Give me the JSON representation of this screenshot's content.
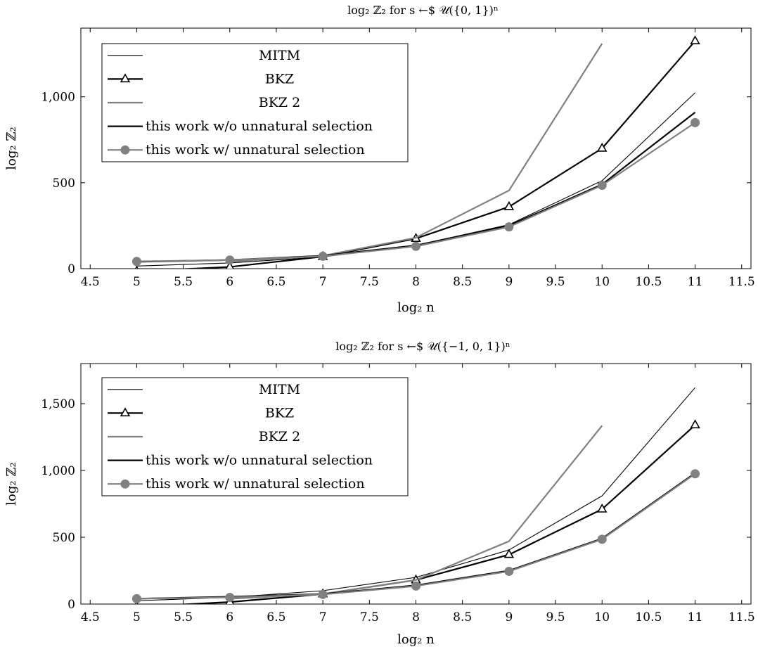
{
  "chart_data": [
    {
      "type": "line",
      "title": "log₂ ℤ₂ for s ←$ 𝒰({0, 1})ⁿ",
      "xlabel": "log₂ n",
      "ylabel": "log₂ ℤ₂",
      "xlim": [
        4.4,
        11.6
      ],
      "ylim": [
        0,
        1400
      ],
      "x_ticks": [
        4.5,
        5,
        5.5,
        6,
        6.5,
        7,
        7.5,
        8,
        8.5,
        9,
        9.5,
        10,
        10.5,
        11,
        11.5
      ],
      "x_tick_labels": [
        "4.5",
        "5",
        "5.5",
        "6",
        "6.5",
        "7",
        "7.5",
        "8",
        "8.5",
        "9",
        "9.5",
        "10",
        "10.5",
        "11",
        "11.5"
      ],
      "y_ticks": [
        0,
        500,
        1000
      ],
      "y_tick_labels": [
        "0",
        "500",
        "1,000"
      ],
      "legend_position": "top-left",
      "series": [
        {
          "name": "MITM",
          "color": "#000000",
          "width": 1,
          "marker": "none",
          "x": [
            5,
            6,
            7,
            8,
            9,
            10,
            11
          ],
          "values": [
            15,
            33,
            68,
            136,
            256,
            512,
            1024
          ]
        },
        {
          "name": "BKZ",
          "color": "#000000",
          "width": 2,
          "marker": "triangle",
          "x": [
            5,
            6,
            7,
            8,
            9,
            10,
            11
          ],
          "values": [
            -15,
            10,
            70,
            175,
            360,
            700,
            1325
          ]
        },
        {
          "name": "BKZ 2",
          "color": "#808080",
          "width": 2,
          "marker": "none",
          "x": [
            6,
            7,
            8,
            9,
            10
          ],
          "values": [
            40,
            75,
            180,
            455,
            1310
          ]
        },
        {
          "name": "this work w/o unnatural selection",
          "color": "#000000",
          "width": 2,
          "marker": "none",
          "x": [
            5,
            6,
            7,
            8,
            9,
            10,
            11
          ],
          "values": [
            40,
            50,
            75,
            135,
            250,
            490,
            910
          ]
        },
        {
          "name": "this work w/ unnatural selection",
          "color": "#808080",
          "width": 2,
          "marker": "circle",
          "x": [
            5,
            6,
            7,
            8,
            9,
            10,
            11
          ],
          "values": [
            42,
            50,
            72,
            130,
            243,
            485,
            850
          ]
        }
      ]
    },
    {
      "type": "line",
      "title": "log₂ ℤ₂ for s ←$ 𝒰({−1, 0, 1})ⁿ",
      "xlabel": "log₂ n",
      "ylabel": "log₂ ℤ₂",
      "xlim": [
        4.4,
        11.6
      ],
      "ylim": [
        0,
        1800
      ],
      "x_ticks": [
        4.5,
        5,
        5.5,
        6,
        6.5,
        7,
        7.5,
        8,
        8.5,
        9,
        9.5,
        10,
        10.5,
        11,
        11.5
      ],
      "x_tick_labels": [
        "4.5",
        "5",
        "5.5",
        "6",
        "6.5",
        "7",
        "7.5",
        "8",
        "8.5",
        "9",
        "9.5",
        "10",
        "10.5",
        "11",
        "11.5"
      ],
      "y_ticks": [
        0,
        500,
        1000,
        1500
      ],
      "y_tick_labels": [
        "0",
        "500",
        "1,000",
        "1,500"
      ],
      "legend_position": "top-left",
      "series": [
        {
          "name": "MITM",
          "color": "#000000",
          "width": 1,
          "marker": "none",
          "x": [
            5,
            6,
            7,
            8,
            9,
            10,
            11
          ],
          "values": [
            25,
            50,
            100,
            200,
            405,
            810,
            1620
          ]
        },
        {
          "name": "BKZ",
          "color": "#000000",
          "width": 2,
          "marker": "triangle",
          "x": [
            5,
            6,
            7,
            8,
            9,
            10,
            11
          ],
          "values": [
            -20,
            15,
            75,
            180,
            370,
            710,
            1340
          ]
        },
        {
          "name": "BKZ 2",
          "color": "#808080",
          "width": 2,
          "marker": "none",
          "x": [
            6,
            7,
            8,
            9,
            10
          ],
          "values": [
            40,
            75,
            180,
            470,
            1335
          ]
        },
        {
          "name": "this work w/o unnatural selection",
          "color": "#000000",
          "width": 2,
          "marker": "none",
          "x": [
            5,
            6,
            7,
            8,
            9,
            10,
            11
          ],
          "values": [
            40,
            55,
            75,
            140,
            250,
            490,
            980
          ]
        },
        {
          "name": "this work w/ unnatural selection",
          "color": "#808080",
          "width": 2,
          "marker": "circle",
          "x": [
            5,
            6,
            7,
            8,
            9,
            10,
            11
          ],
          "values": [
            40,
            50,
            72,
            135,
            245,
            485,
            975
          ]
        }
      ]
    }
  ]
}
